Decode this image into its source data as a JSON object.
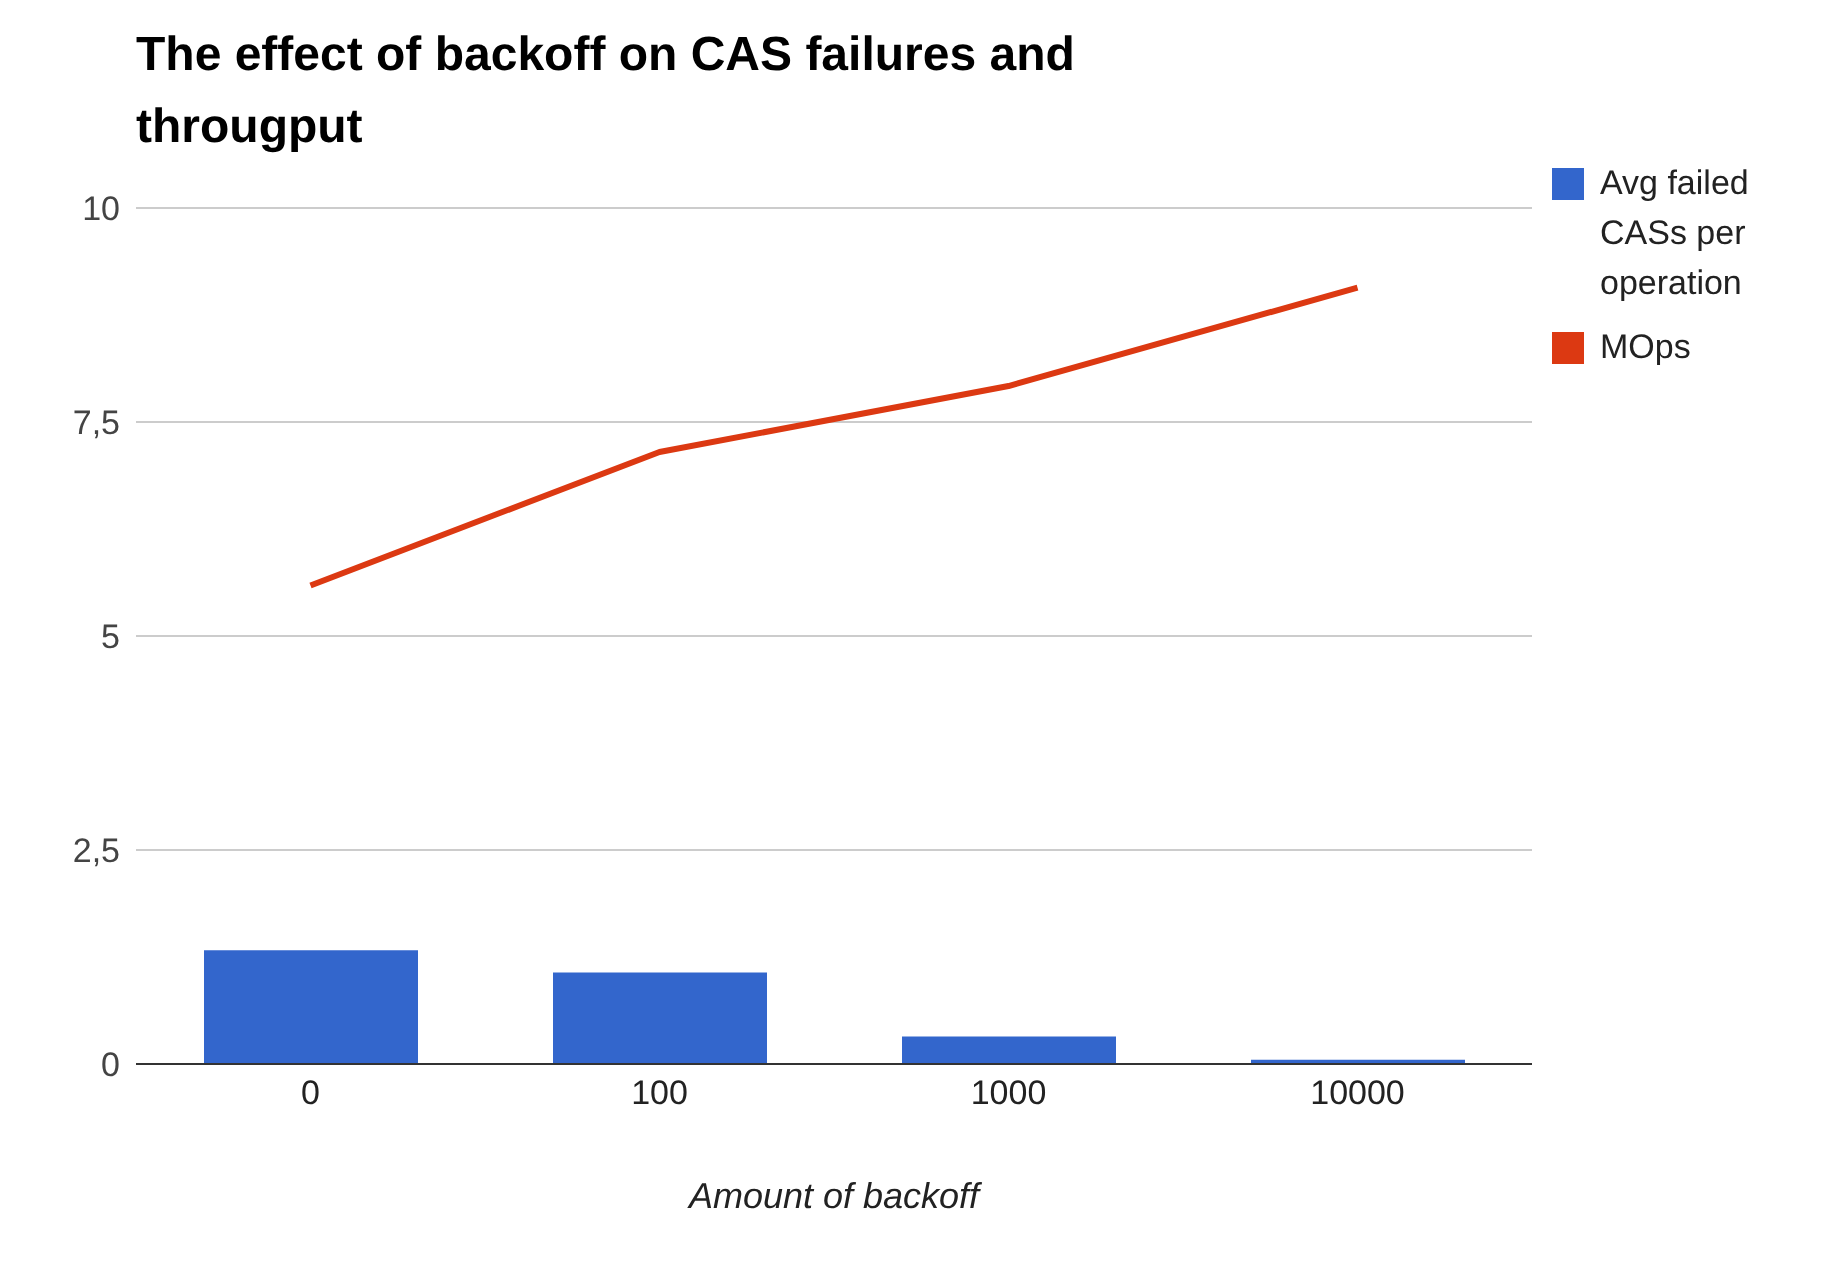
{
  "chart_data": {
    "type": "bar",
    "title": "The effect of backoff on CAS failures and througput",
    "xlabel": "Amount of backoff",
    "categories": [
      "0",
      "100",
      "1000",
      "10000"
    ],
    "series": [
      {
        "name": "Avg failed CASs per operation",
        "color": "#3366cc",
        "values": [
          1.33,
          1.07,
          0.32,
          0.05
        ]
      },
      {
        "name": "MOps",
        "type": "line",
        "color": "#dc3912",
        "values": [
          5.59,
          7.15,
          7.92,
          9.07
        ]
      }
    ],
    "ylim": [
      0,
      10
    ],
    "yticks": [
      0,
      {
        "value": 2.5,
        "label": "2,5"
      },
      5,
      {
        "value": 7.5,
        "label": "7,5"
      },
      10
    ],
    "grid": "y",
    "legend": "right",
    "marker": "none"
  }
}
